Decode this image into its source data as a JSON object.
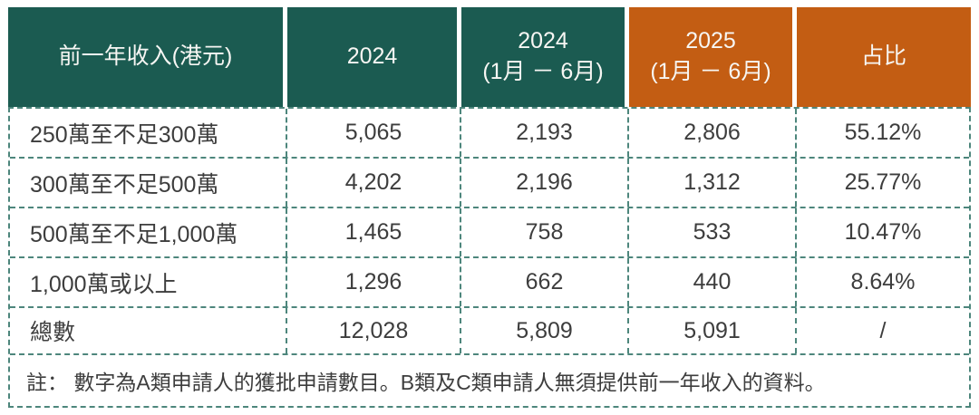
{
  "colors": {
    "header_teal": "#1b5b51",
    "header_orange": "#c35d13",
    "border_dash": "#4d867c",
    "body_text": "#3d3d3d",
    "header_text": "#f7f6f3"
  },
  "table": {
    "headers": [
      {
        "line1": "前一年收入(港元)",
        "line2": ""
      },
      {
        "line1": "2024",
        "line2": ""
      },
      {
        "line1": "2024",
        "line2": "(1月 － 6月)"
      },
      {
        "line1": "2025",
        "line2": "(1月 － 6月)"
      },
      {
        "line1": "占比",
        "line2": ""
      }
    ],
    "rows": [
      {
        "cells": [
          "250萬至不足300萬",
          "5,065",
          "2,193",
          "2,806",
          "55.12%"
        ]
      },
      {
        "cells": [
          "300萬至不足500萬",
          "4,202",
          "2,196",
          "1,312",
          "25.77%"
        ]
      },
      {
        "cells": [
          "500萬至不足1,000萬",
          "1,465",
          "758",
          "533",
          "10.47%"
        ]
      },
      {
        "cells": [
          "1,000萬或以上",
          "1,296",
          "662",
          "440",
          "8.64%"
        ]
      },
      {
        "cells": [
          "總數",
          "12,028",
          "5,809",
          "5,091",
          "/"
        ]
      }
    ],
    "note": "註： 數字為A類申請人的獲批申請數目。B類及C類申請人無須提供前一年收入的資料。"
  }
}
